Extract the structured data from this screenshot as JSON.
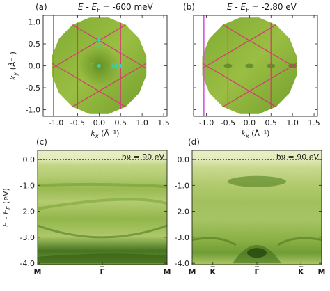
{
  "chart_data": [
    {
      "type": "heatmap",
      "panel": "(a)",
      "title": "E - E_F = -600 meV",
      "title_parts": {
        "pre": "E - E",
        "sub": "F",
        "post": " = -600 meV"
      },
      "xlabel": {
        "base": "k",
        "sub": "x",
        "unit": " (Å⁻¹)"
      },
      "ylabel": {
        "base": "k",
        "sub": "y",
        "unit": " (Å⁻¹)"
      },
      "xlim": [
        -1.3,
        1.58
      ],
      "ylim": [
        -1.15,
        1.15
      ],
      "xticks": [
        -1.0,
        -0.5,
        0.0,
        0.5,
        1.0,
        1.5
      ],
      "xtick_labels": [
        "-1.0",
        "-0.5",
        "0.0",
        "0.5",
        "1.0",
        "1.5"
      ],
      "yticks": [
        -1.0,
        -0.5,
        0.0,
        0.5,
        1.0
      ],
      "ytick_labels": [
        "-1.0",
        "-0.5",
        "0.0",
        "0.5",
        "1.0"
      ],
      "points": [
        {
          "label": "Γ",
          "x": 0.0,
          "y": 0.0
        },
        {
          "label": "M",
          "x": 0.5,
          "y": 0.0
        },
        {
          "label": "K",
          "x": 0.0,
          "y": 0.59
        }
      ]
    },
    {
      "type": "heatmap",
      "panel": "(b)",
      "title": "E - E_F = -2.80 eV",
      "title_parts": {
        "pre": "E - E",
        "sub": "F",
        "post": " = -2.80 eV"
      },
      "xlabel": {
        "base": "k",
        "sub": "x",
        "unit": " (Å⁻¹)"
      },
      "xlim": [
        -1.3,
        1.58
      ],
      "ylim": [
        -1.15,
        1.15
      ],
      "xticks": [
        -1.0,
        -0.5,
        0.0,
        0.5,
        1.0,
        1.5
      ],
      "xtick_labels": [
        "-1.0",
        "-0.5",
        "0.0",
        "0.5",
        "1.0",
        "1.5"
      ],
      "yticks": [
        -1.0,
        -0.5,
        0.0,
        0.5,
        1.0
      ]
    },
    {
      "type": "heatmap",
      "panel": "(c)",
      "annotation": "hν = 90 eV",
      "ylabel": {
        "pre": "E - E",
        "sub": "F",
        "post": " (eV)"
      },
      "ylim": [
        -4.05,
        0.35
      ],
      "yticks": [
        0.0,
        -1.0,
        -2.0,
        -3.0,
        -4.0
      ],
      "ytick_labels": [
        "0.0",
        "-1.0",
        "-2.0",
        "-3.0",
        "-4.0"
      ],
      "x_labels": [
        "M",
        "Γ",
        "M"
      ],
      "fermi_level": 0.0
    },
    {
      "type": "heatmap",
      "panel": "(d)",
      "annotation": "hν = 90 eV",
      "ylim": [
        -4.05,
        0.35
      ],
      "yticks": [
        0.0,
        -1.0,
        -2.0,
        -3.0,
        -4.0
      ],
      "ytick_labels": [
        "0.0",
        "-1.0",
        "-2.0",
        "-3.0",
        "-4.0"
      ],
      "x_labels": [
        "M",
        "K",
        "Γ",
        "K",
        "M"
      ],
      "fermi_level": 0.0
    }
  ],
  "colors": {
    "map_base": "#9dbf3c",
    "map_dark": "#3f6e1a",
    "map_light": "#eef4c8",
    "bz_lines": "#cf3f70",
    "vertical_line": "#d25ad6",
    "points": "#2ad6c8"
  }
}
